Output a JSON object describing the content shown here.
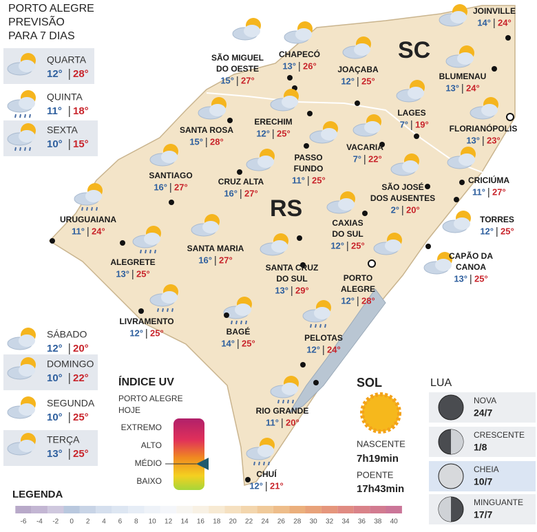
{
  "header": {
    "title": [
      "PORTO ALEGRE",
      "PREVISÃO",
      "PARA 7 DIAS"
    ]
  },
  "forecast": [
    {
      "day": "QUARTA",
      "min": "12°",
      "max": "28°"
    },
    {
      "day": "QUINTA",
      "min": "11°",
      "max": "18°"
    },
    {
      "day": "SEXTA",
      "min": "10°",
      "max": "15°"
    },
    {
      "day": "SÁBADO",
      "min": "12°",
      "max": "20°"
    },
    {
      "day": "DOMINGO",
      "min": "10°",
      "max": "22°"
    },
    {
      "day": "SEGUNDA",
      "min": "10°",
      "max": "25°"
    },
    {
      "day": "TERÇA",
      "min": "13°",
      "max": "25°"
    }
  ],
  "regions": [
    "SC",
    "RS"
  ],
  "cities": [
    {
      "name": [
        "SÃO MIGUEL",
        "DO OESTE"
      ],
      "min": "15°",
      "max": "27°"
    },
    {
      "name": [
        "CHAPECÓ"
      ],
      "min": "13°",
      "max": "26°"
    },
    {
      "name": [
        "JOAÇABA"
      ],
      "min": "12°",
      "max": "25°"
    },
    {
      "name": [
        "JOINVILLE"
      ],
      "min": "14°",
      "max": "24°"
    },
    {
      "name": [
        "BLUMENAU"
      ],
      "min": "13°",
      "max": "24°"
    },
    {
      "name": [
        "LAGES"
      ],
      "min": "7°",
      "max": "19°"
    },
    {
      "name": [
        "FLORIANÓPOLIS"
      ],
      "min": "13°",
      "max": "23°"
    },
    {
      "name": [
        "ERECHIM"
      ],
      "min": "12°",
      "max": "25°"
    },
    {
      "name": [
        "SANTA ROSA"
      ],
      "min": "15°",
      "max": "28°"
    },
    {
      "name": [
        "VACARIA"
      ],
      "min": "7°",
      "max": "22°"
    },
    {
      "name": [
        "PASSO",
        "FUNDO"
      ],
      "min": "11°",
      "max": "25°"
    },
    {
      "name": [
        "SANTIAGO"
      ],
      "min": "16°",
      "max": "27°"
    },
    {
      "name": [
        "CRUZ ALTA"
      ],
      "min": "16°",
      "max": "27°"
    },
    {
      "name": [
        "CRICIÚMA"
      ],
      "min": "11°",
      "max": "27°"
    },
    {
      "name": [
        "SÃO JOSÉ",
        "DOS AUSENTES"
      ],
      "min": "2°",
      "max": "20°"
    },
    {
      "name": [
        "URUGUAIANA"
      ],
      "min": "11°",
      "max": "24°"
    },
    {
      "name": [
        "CAXIAS",
        "DO SUL"
      ],
      "min": "12°",
      "max": "25°"
    },
    {
      "name": [
        "TORRES"
      ],
      "min": "12°",
      "max": "25°"
    },
    {
      "name": [
        "SANTA MARIA"
      ],
      "min": "16°",
      "max": "27°"
    },
    {
      "name": [
        "ALEGRETE"
      ],
      "min": "13°",
      "max": "25°"
    },
    {
      "name": [
        "CAPÃO DA",
        "CANOA"
      ],
      "min": "13°",
      "max": "25°"
    },
    {
      "name": [
        "SANTA CRUZ",
        "DO SUL"
      ],
      "min": "13°",
      "max": "29°"
    },
    {
      "name": [
        "PORTO",
        "ALEGRE"
      ],
      "min": "12°",
      "max": "28°"
    },
    {
      "name": [
        "LIVRAMENTO"
      ],
      "min": "12°",
      "max": "25°"
    },
    {
      "name": [
        "BAGÉ"
      ],
      "min": "14°",
      "max": "25°"
    },
    {
      "name": [
        "PELOTAS"
      ],
      "min": "12°",
      "max": "24°"
    },
    {
      "name": [
        "RIO GRANDE"
      ],
      "min": "11°",
      "max": "20°"
    },
    {
      "name": [
        "CHUÍ"
      ],
      "min": "12°",
      "max": "21°"
    }
  ],
  "uv": {
    "title": "ÍNDICE UV",
    "subtitle": [
      "PORTO ALEGRE",
      "HOJE"
    ],
    "levels": [
      "EXTREMO",
      "ALTO",
      "MÉDIO",
      "BAIXO"
    ]
  },
  "sun": {
    "title": "SOL",
    "rise_label": "NASCENTE",
    "rise": "7h19min",
    "set_label": "POENTE",
    "set": "17h43min"
  },
  "moon": {
    "title": "LUA",
    "phases": [
      {
        "name": "NOVA",
        "date": "24/7"
      },
      {
        "name": "CRESCENTE",
        "date": "1/8"
      },
      {
        "name": "CHEIA",
        "date": "10/7"
      },
      {
        "name": "MINGUANTE",
        "date": "17/7"
      }
    ]
  },
  "legend": {
    "title": "LEGENDA",
    "ticks": [
      -6,
      -4,
      -2,
      0,
      2,
      4,
      6,
      8,
      10,
      12,
      14,
      16,
      18,
      20,
      22,
      24,
      26,
      28,
      30,
      32,
      34,
      36,
      38,
      40
    ],
    "colors": [
      "#b8a9c9",
      "#c3b6d3",
      "#cfc8de",
      "#b9c8de",
      "#c8d4e6",
      "#d5dfee",
      "#dde6f2",
      "#e6edf6",
      "#eef2f8",
      "#f4f6fa",
      "#f7f5f0",
      "#f8f1e4",
      "#f7ead3",
      "#f5e0c0",
      "#f3d6ad",
      "#f0ca9a",
      "#eebd8a",
      "#ebaf7c",
      "#e8a27a",
      "#e5967c",
      "#e08b82",
      "#d98289",
      "#d27b90",
      "#cb7698"
    ]
  }
}
